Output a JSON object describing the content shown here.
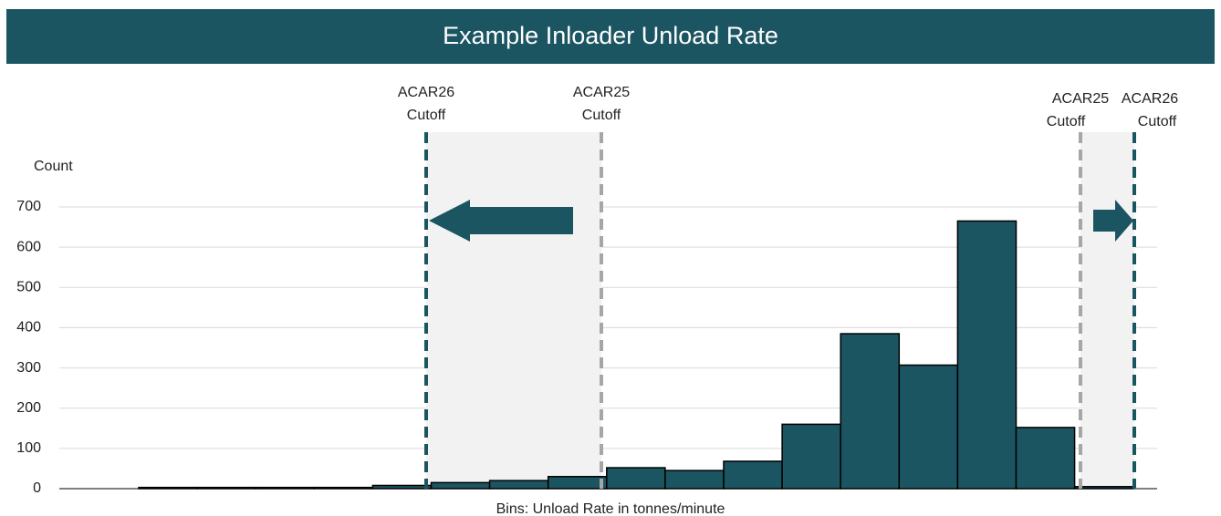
{
  "chart_data": {
    "type": "bar",
    "title": "Example Inloader Unload Rate",
    "y_label": "Count",
    "x_label": "Bins: Unload Rate in tonnes/minute",
    "categories": [
      null,
      null,
      null,
      null,
      null,
      null,
      null,
      null,
      null,
      null,
      null,
      null,
      null,
      null,
      null,
      null,
      null
    ],
    "values": [
      3,
      3,
      3,
      3,
      8,
      15,
      20,
      30,
      52,
      45,
      68,
      160,
      385,
      307,
      665,
      152,
      5
    ],
    "color": "#1b5562",
    "ylim": [
      0,
      700
    ],
    "yticks": [
      0,
      100,
      200,
      300,
      400,
      500,
      600,
      700
    ],
    "grid": true,
    "annotations": [
      [
        "ACAR26",
        "Cutoff"
      ],
      [
        "ACAR25",
        "Cutoff"
      ],
      [
        "ACAR25",
        "Cutoff"
      ],
      [
        "ACAR26",
        "Cutoff"
      ]
    ]
  }
}
